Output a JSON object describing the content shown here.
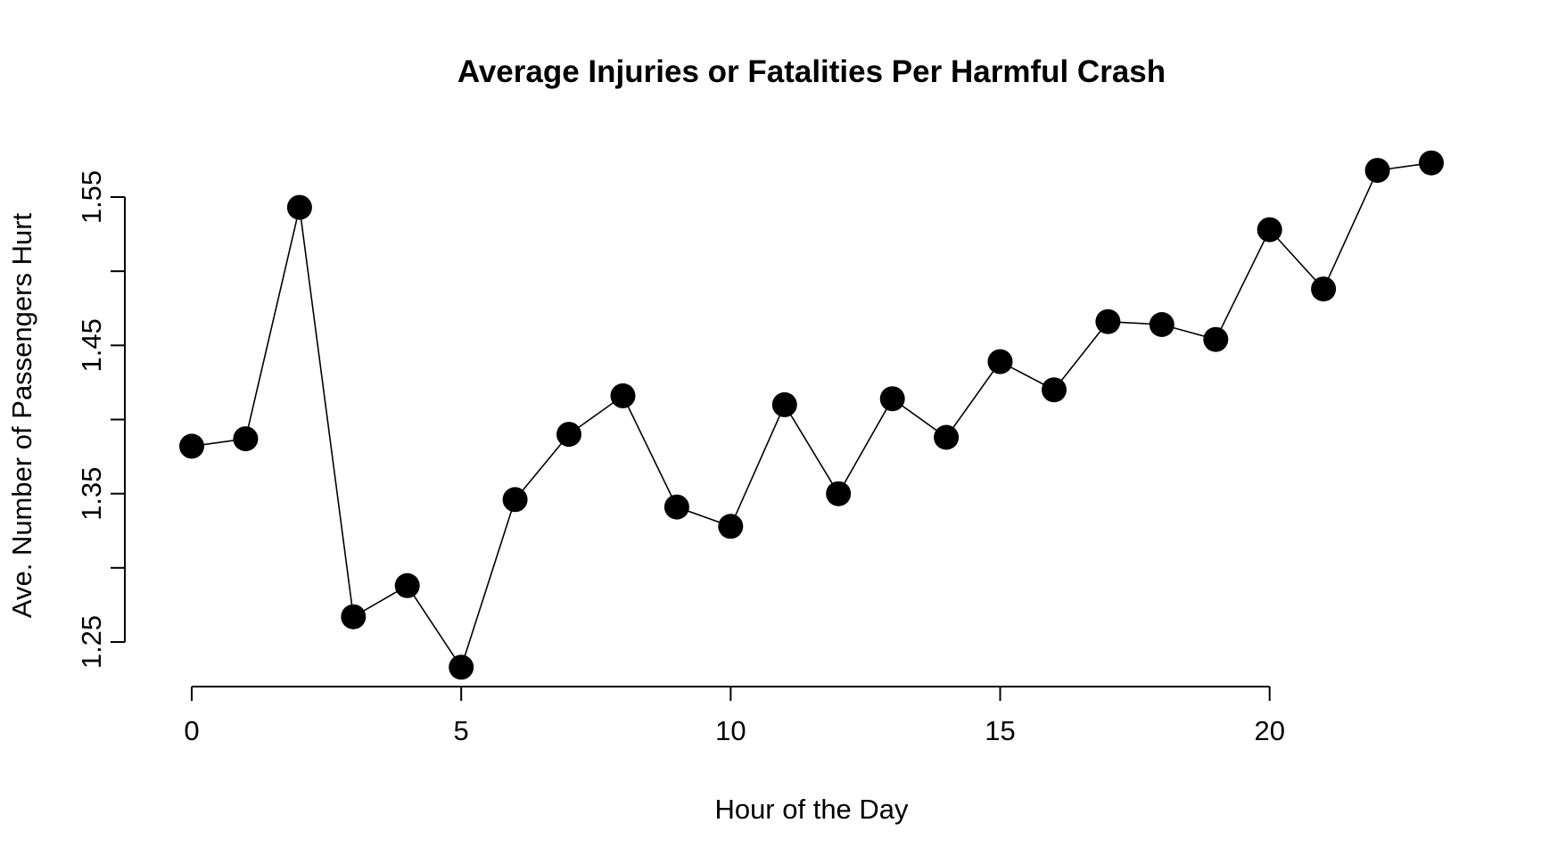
{
  "chart_data": {
    "type": "line",
    "title": "Average Injuries or Fatalities Per Harmful Crash",
    "xlabel": "Hour of the Day",
    "ylabel": "Ave. Number of Passengers Hurt",
    "xlim": [
      0,
      23
    ],
    "ylim": [
      1.25,
      1.55
    ],
    "x_ticks": [
      0,
      5,
      10,
      15,
      20
    ],
    "x_tick_labels": [
      "0",
      "5",
      "10",
      "15",
      "20"
    ],
    "y_ticks": [
      1.25,
      1.3,
      1.35,
      1.4,
      1.45,
      1.5,
      1.55
    ],
    "y_tick_labels": [
      "1.25",
      "",
      "1.35",
      "",
      "1.45",
      "",
      "1.55"
    ],
    "grid": false,
    "legend": "none",
    "marker": "filled-circle",
    "color": "#000000",
    "series": [
      {
        "x": [
          0,
          1,
          2,
          3,
          4,
          5,
          6,
          7,
          8,
          9,
          10,
          11,
          12,
          13,
          14,
          15,
          16,
          17,
          18,
          19,
          20,
          21,
          22,
          23
        ],
        "values": [
          1.382,
          1.387,
          1.543,
          1.267,
          1.288,
          1.233,
          1.346,
          1.39,
          1.416,
          1.341,
          1.328,
          1.41,
          1.35,
          1.414,
          1.388,
          1.439,
          1.42,
          1.466,
          1.464,
          1.454,
          1.528,
          1.488,
          1.568,
          1.573
        ]
      }
    ]
  }
}
